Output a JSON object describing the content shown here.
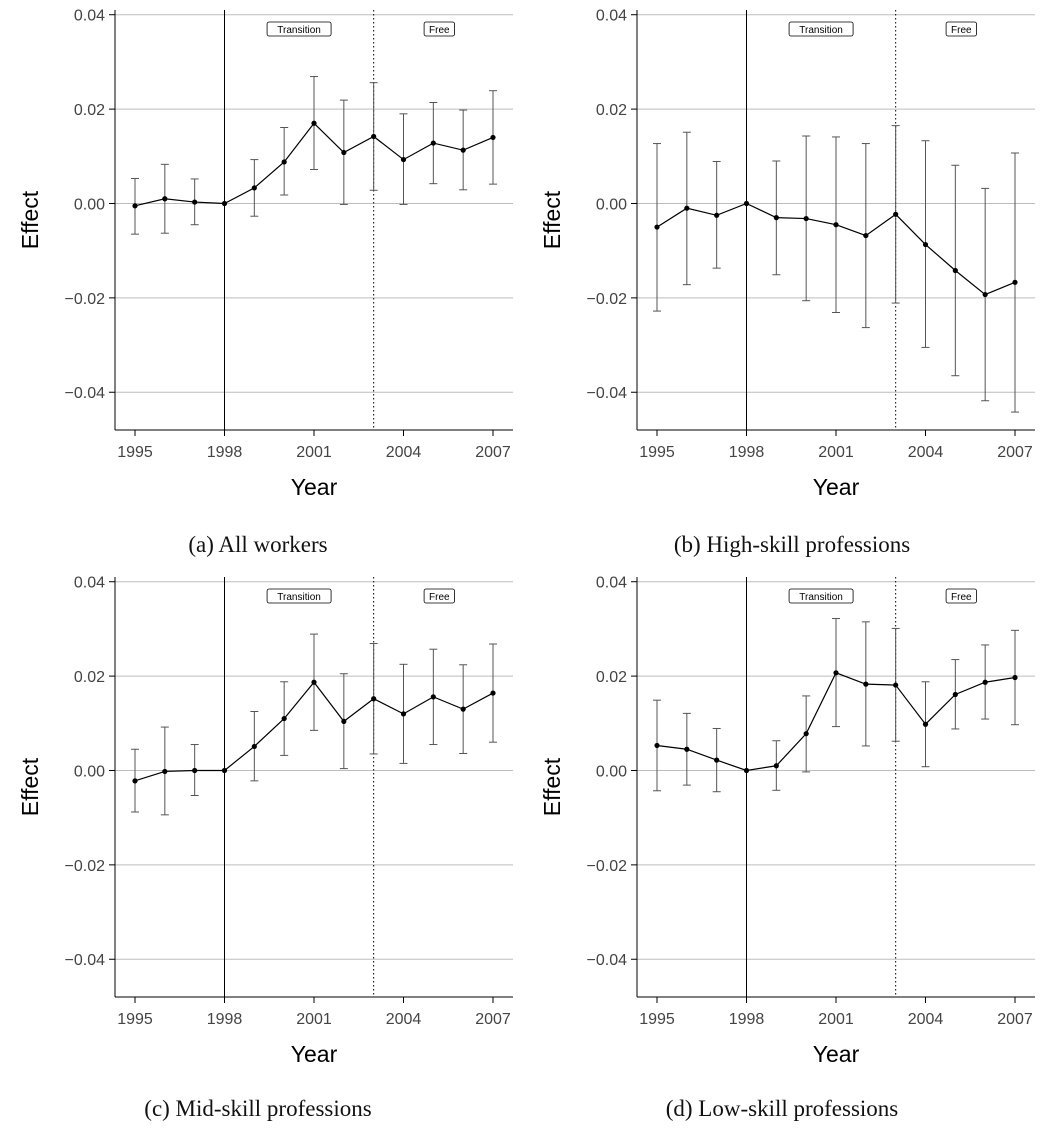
{
  "chart_data": [
    {
      "type": "line",
      "caption": "(a) All workers",
      "xlabel": "Year",
      "ylabel": "Effect",
      "xlim": [
        1995,
        2007
      ],
      "ylim": [
        -0.048,
        0.041
      ],
      "x_ticks": [
        1995,
        1998,
        2001,
        2004,
        2007
      ],
      "y_ticks": [
        0.04,
        0.02,
        0.0,
        -0.02,
        -0.04
      ],
      "y_tick_labels": [
        "0.04",
        "0.02",
        "0.00",
        "−0.02",
        "−0.04"
      ],
      "grid": true,
      "reference_lines": [
        {
          "x": 1998,
          "style": "solid"
        },
        {
          "x": 2003,
          "style": "dotted"
        }
      ],
      "annotations": [
        {
          "label": "Transition",
          "x": 2000.5
        },
        {
          "label": "Free",
          "x": 2005.2
        }
      ],
      "x": [
        1995,
        1996,
        1997,
        1998,
        1999,
        2000,
        2001,
        2002,
        2003,
        2004,
        2005,
        2006,
        2007
      ],
      "values": [
        -0.0005,
        0.001,
        0.0003,
        0.0,
        0.0033,
        0.0088,
        0.017,
        0.0108,
        0.0142,
        0.0093,
        0.0128,
        0.0113,
        0.014
      ],
      "ci_low": [
        -0.0065,
        -0.0063,
        -0.0045,
        0.0,
        -0.0027,
        0.0018,
        0.0072,
        -0.0002,
        0.0028,
        -0.0002,
        0.0042,
        0.0029,
        0.0041
      ],
      "ci_high": [
        0.0053,
        0.0083,
        0.0052,
        0.0,
        0.0093,
        0.0161,
        0.0269,
        0.0219,
        0.0256,
        0.019,
        0.0214,
        0.0198,
        0.0239
      ]
    },
    {
      "type": "line",
      "caption": "(b) High-skill professions",
      "xlabel": "Year",
      "ylabel": "Effect",
      "xlim": [
        1995,
        2007
      ],
      "ylim": [
        -0.048,
        0.041
      ],
      "x_ticks": [
        1995,
        1998,
        2001,
        2004,
        2007
      ],
      "y_ticks": [
        0.04,
        0.02,
        0.0,
        -0.02,
        -0.04
      ],
      "y_tick_labels": [
        "0.04",
        "0.02",
        "0.00",
        "−0.02",
        "−0.04"
      ],
      "grid": true,
      "reference_lines": [
        {
          "x": 1998,
          "style": "solid"
        },
        {
          "x": 2003,
          "style": "dotted"
        }
      ],
      "annotations": [
        {
          "label": "Transition",
          "x": 2000.5
        },
        {
          "label": "Free",
          "x": 2005.2
        }
      ],
      "x": [
        1995,
        1996,
        1997,
        1998,
        1999,
        2000,
        2001,
        2002,
        2003,
        2004,
        2005,
        2006,
        2007
      ],
      "values": [
        -0.005,
        -0.001,
        -0.0025,
        0.0,
        -0.003,
        -0.0032,
        -0.0045,
        -0.0068,
        -0.0023,
        -0.0087,
        -0.0142,
        -0.0193,
        -0.0167
      ],
      "ci_low": [
        -0.0228,
        -0.0172,
        -0.0137,
        0.0,
        -0.0151,
        -0.0206,
        -0.0231,
        -0.0263,
        -0.0211,
        -0.0305,
        -0.0365,
        -0.0418,
        -0.0442
      ],
      "ci_high": [
        0.0127,
        0.0151,
        0.0089,
        0.0,
        0.009,
        0.0143,
        0.0141,
        0.0127,
        0.0165,
        0.0133,
        0.0081,
        0.0032,
        0.0107
      ]
    },
    {
      "type": "line",
      "caption": "(c) Mid-skill professions",
      "xlabel": "Year",
      "ylabel": "Effect",
      "xlim": [
        1995,
        2007
      ],
      "ylim": [
        -0.048,
        0.041
      ],
      "x_ticks": [
        1995,
        1998,
        2001,
        2004,
        2007
      ],
      "y_ticks": [
        0.04,
        0.02,
        0.0,
        -0.02,
        -0.04
      ],
      "y_tick_labels": [
        "0.04",
        "0.02",
        "0.00",
        "−0.02",
        "−0.04"
      ],
      "grid": true,
      "reference_lines": [
        {
          "x": 1998,
          "style": "solid"
        },
        {
          "x": 2003,
          "style": "dotted"
        }
      ],
      "annotations": [
        {
          "label": "Transition",
          "x": 2000.5
        },
        {
          "label": "Free",
          "x": 2005.2
        }
      ],
      "x": [
        1995,
        1996,
        1997,
        1998,
        1999,
        2000,
        2001,
        2002,
        2003,
        2004,
        2005,
        2006,
        2007
      ],
      "values": [
        -0.0022,
        -0.0002,
        0.0,
        0.0,
        0.0051,
        0.011,
        0.0187,
        0.0104,
        0.0152,
        0.012,
        0.0156,
        0.013,
        0.0164
      ],
      "ci_low": [
        -0.0088,
        -0.0094,
        -0.0053,
        0.0,
        -0.0022,
        0.0032,
        0.0085,
        0.0004,
        0.0035,
        0.0015,
        0.0055,
        0.0036,
        0.006
      ],
      "ci_high": [
        0.0045,
        0.0092,
        0.0055,
        0.0,
        0.0125,
        0.0188,
        0.0289,
        0.0205,
        0.0269,
        0.0225,
        0.0257,
        0.0224,
        0.0268
      ]
    },
    {
      "type": "line",
      "caption": "(d) Low-skill professions",
      "xlabel": "Year",
      "ylabel": "Effect",
      "xlim": [
        1995,
        2007
      ],
      "ylim": [
        -0.048,
        0.041
      ],
      "x_ticks": [
        1995,
        1998,
        2001,
        2004,
        2007
      ],
      "y_ticks": [
        0.04,
        0.02,
        0.0,
        -0.02,
        -0.04
      ],
      "y_tick_labels": [
        "0.04",
        "0.02",
        "0.00",
        "−0.02",
        "−0.04"
      ],
      "grid": true,
      "reference_lines": [
        {
          "x": 1998,
          "style": "solid"
        },
        {
          "x": 2003,
          "style": "dotted"
        }
      ],
      "annotations": [
        {
          "label": "Transition",
          "x": 2000.5
        },
        {
          "label": "Free",
          "x": 2005.2
        }
      ],
      "x": [
        1995,
        1996,
        1997,
        1998,
        1999,
        2000,
        2001,
        2002,
        2003,
        2004,
        2005,
        2006,
        2007
      ],
      "values": [
        0.0053,
        0.0045,
        0.0022,
        0.0,
        0.001,
        0.0078,
        0.0207,
        0.0183,
        0.0181,
        0.0098,
        0.0161,
        0.0187,
        0.0197
      ],
      "ci_low": [
        -0.0043,
        -0.0031,
        -0.0045,
        0.0,
        -0.0042,
        -0.0003,
        0.0093,
        0.0052,
        0.0062,
        0.0008,
        0.0088,
        0.0109,
        0.0097
      ],
      "ci_high": [
        0.0149,
        0.0121,
        0.0089,
        0.0,
        0.0063,
        0.0158,
        0.0322,
        0.0315,
        0.0301,
        0.0188,
        0.0235,
        0.0266,
        0.0297
      ]
    }
  ]
}
